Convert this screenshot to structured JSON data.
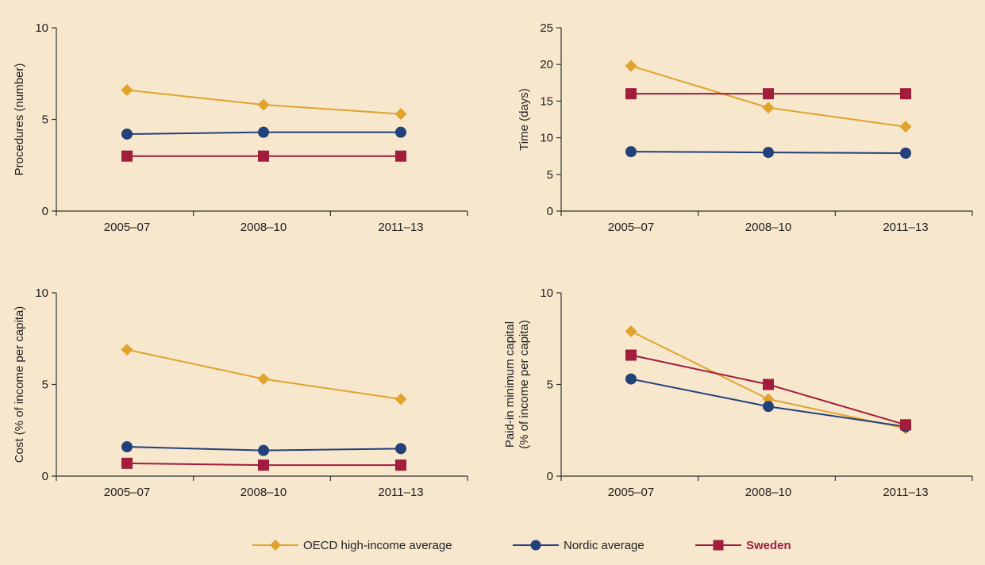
{
  "legend": {
    "oecd": "OECD high-income average",
    "nordic": "Nordic average",
    "sweden": "Sweden"
  },
  "colors": {
    "oecd": "#e0a32e",
    "nordic": "#22407a",
    "sweden": "#a11d3b",
    "background": "#f7e7cd"
  },
  "chart_data": [
    {
      "type": "line",
      "title": "",
      "xlabel": "",
      "ylabel": "Procedures (number)",
      "categories": [
        "2005–07",
        "2008–10",
        "2011–13"
      ],
      "ylim": [
        0,
        10
      ],
      "yticks": [
        0,
        5,
        10
      ],
      "series": [
        {
          "name": "OECD high-income average",
          "marker": "diamond",
          "values": [
            6.6,
            5.8,
            5.3
          ]
        },
        {
          "name": "Nordic average",
          "marker": "circle",
          "values": [
            4.2,
            4.3,
            4.3
          ]
        },
        {
          "name": "Sweden",
          "marker": "square",
          "values": [
            3.0,
            3.0,
            3.0
          ]
        }
      ]
    },
    {
      "type": "line",
      "title": "",
      "xlabel": "",
      "ylabel": "Time (days)",
      "categories": [
        "2005–07",
        "2008–10",
        "2011–13"
      ],
      "ylim": [
        0,
        25
      ],
      "yticks": [
        0,
        5,
        10,
        15,
        20,
        25
      ],
      "series": [
        {
          "name": "OECD high-income average",
          "marker": "diamond",
          "values": [
            19.8,
            14.1,
            11.5
          ]
        },
        {
          "name": "Nordic average",
          "marker": "circle",
          "values": [
            8.1,
            8.0,
            7.9
          ]
        },
        {
          "name": "Sweden",
          "marker": "square",
          "values": [
            16.0,
            16.0,
            16.0
          ]
        }
      ]
    },
    {
      "type": "line",
      "title": "",
      "xlabel": "",
      "ylabel": "Cost (% of income per capita)",
      "categories": [
        "2005–07",
        "2008–10",
        "2011–13"
      ],
      "ylim": [
        0,
        10
      ],
      "yticks": [
        0,
        5,
        10
      ],
      "series": [
        {
          "name": "OECD high-income average",
          "marker": "diamond",
          "values": [
            6.9,
            5.3,
            4.2
          ]
        },
        {
          "name": "Nordic average",
          "marker": "circle",
          "values": [
            1.6,
            1.4,
            1.5
          ]
        },
        {
          "name": "Sweden",
          "marker": "square",
          "values": [
            0.7,
            0.6,
            0.6
          ]
        }
      ]
    },
    {
      "type": "line",
      "title": "",
      "xlabel": "",
      "ylabel": [
        "Paid-in minimum capital",
        "(% of income per capita)"
      ],
      "categories": [
        "2005–07",
        "2008–10",
        "2011–13"
      ],
      "ylim": [
        0,
        10
      ],
      "yticks": [
        0,
        5,
        10
      ],
      "series": [
        {
          "name": "OECD high-income average",
          "marker": "diamond",
          "values": [
            7.9,
            4.2,
            2.6
          ]
        },
        {
          "name": "Nordic average",
          "marker": "circle",
          "values": [
            5.3,
            3.8,
            2.7
          ]
        },
        {
          "name": "Sweden",
          "marker": "square",
          "values": [
            6.6,
            5.0,
            2.8
          ]
        }
      ]
    }
  ]
}
